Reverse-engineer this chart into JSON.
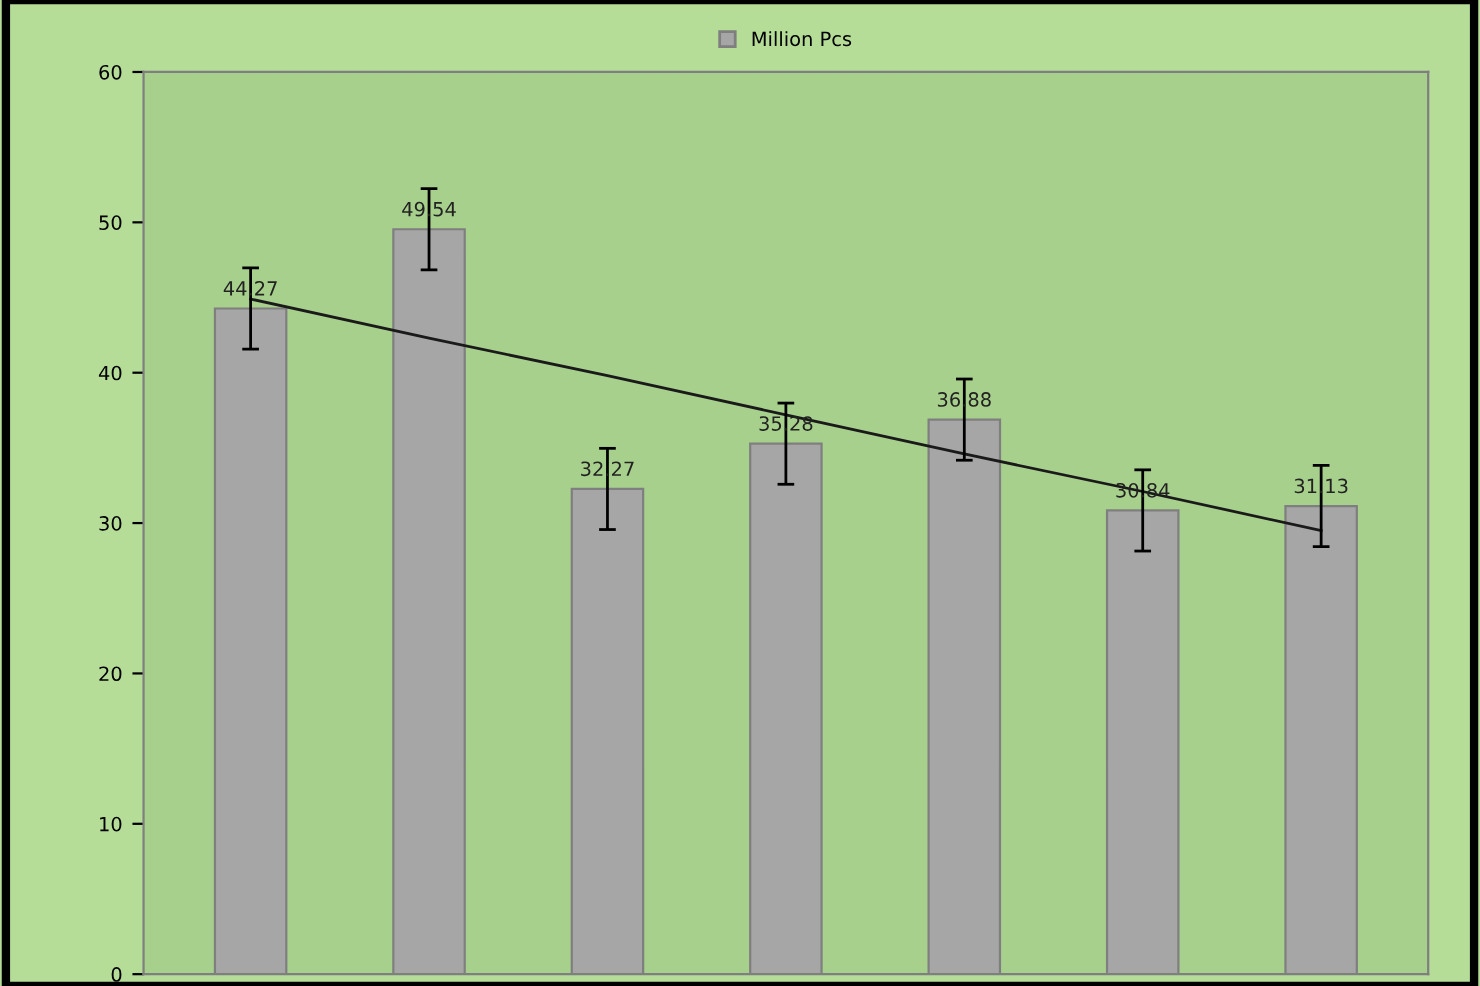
{
  "chart_data": {
    "type": "bar",
    "categories": [
      null,
      null,
      null,
      null,
      null,
      null,
      null
    ],
    "series": [
      {
        "name": "Million Pcs",
        "color": "#a6a6a6",
        "values": [
          44.27,
          49.54,
          32.27,
          35.28,
          36.88,
          30.84,
          31.13
        ],
        "errors": [
          2.7,
          2.7,
          2.7,
          2.7,
          2.7,
          2.7,
          2.7
        ],
        "value_labels": [
          "44.27",
          "49.54",
          "32.27",
          "35.28",
          "36.88",
          "30.84",
          "31.13"
        ]
      },
      {
        "type": "line",
        "color": "#1a1a1a",
        "values": [
          44.9,
          42.3,
          39.8,
          37.2,
          34.6,
          32.1,
          29.5
        ]
      }
    ],
    "ylim": [
      0,
      60
    ],
    "yticks": [
      0,
      10,
      20,
      30,
      40,
      50,
      60
    ],
    "grid": false,
    "legend": "top"
  }
}
